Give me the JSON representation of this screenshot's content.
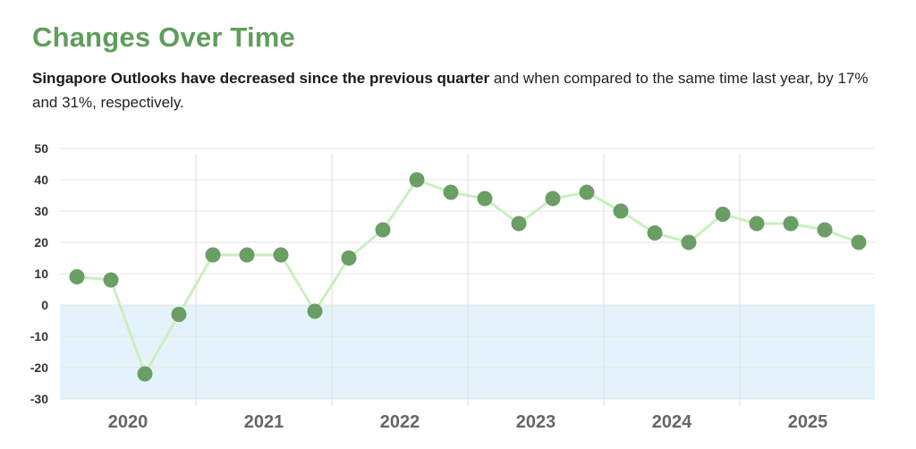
{
  "header": {
    "title": "Changes Over Time",
    "subtitle_bold": "Singapore Outlooks have decreased since the previous quarter",
    "subtitle_rest": " and when compared to the same time last year, by 17% and 31%, respectively."
  },
  "colors": {
    "title": "#5f9e5c",
    "marker": "#6a9e64",
    "line": "#c9efc0",
    "negative_band": "#e4f3fb",
    "grid": "#e6e6e6"
  },
  "chart_data": {
    "type": "line",
    "title": "Changes Over Time",
    "xlabel": "",
    "ylabel": "",
    "ylim": [
      -30,
      50
    ],
    "yticks": [
      50,
      40,
      30,
      20,
      10,
      0,
      -10,
      -20,
      -30
    ],
    "grid": true,
    "negative_region_shaded": true,
    "year_groups": [
      {
        "label": "2020",
        "points": 4
      },
      {
        "label": "2021",
        "points": 4
      },
      {
        "label": "2022",
        "points": 4
      },
      {
        "label": "2023",
        "points": 4
      },
      {
        "label": "2024",
        "points": 4
      },
      {
        "label": "2025",
        "points": 4
      }
    ],
    "series": [
      {
        "name": "Singapore Outlook",
        "values": [
          9,
          8,
          -22,
          -3,
          16,
          16,
          16,
          -2,
          15,
          24,
          40,
          36,
          34,
          26,
          34,
          36,
          30,
          23,
          20,
          29,
          26,
          26,
          24,
          20
        ]
      }
    ]
  }
}
